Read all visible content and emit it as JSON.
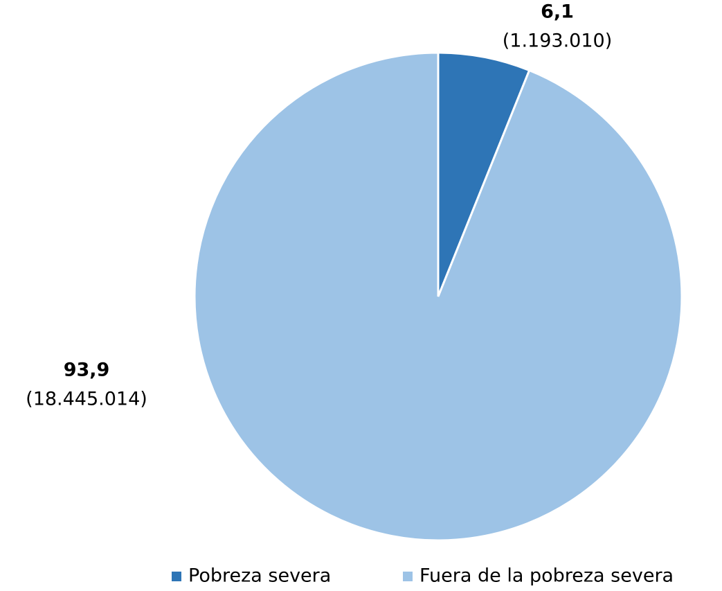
{
  "chart_data": {
    "type": "pie",
    "categories": [
      "Pobreza severa",
      "Fuera de la pobreza severa"
    ],
    "values": [
      6.1,
      93.9
    ],
    "value_labels": [
      "6,1",
      "93,9"
    ],
    "counts": [
      1193010,
      18445014
    ],
    "count_labels": [
      "(1.193.010)",
      "(18.445.014)"
    ],
    "colors": [
      "#2e75b6",
      "#9dc3e6"
    ],
    "legend": "bottom"
  }
}
